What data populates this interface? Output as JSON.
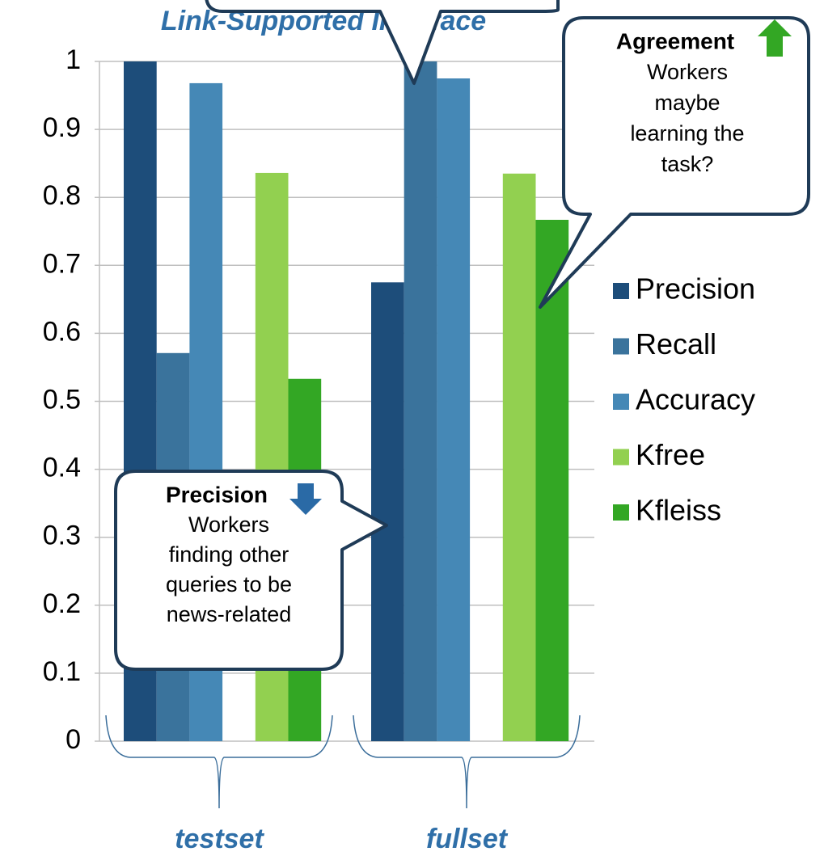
{
  "chart_data": {
    "type": "bar",
    "title": "Link-Supported Interface",
    "categories": [
      "testset",
      "fullset"
    ],
    "series": [
      {
        "name": "Precision",
        "color": "#1d4d7a",
        "values": [
          1.0,
          0.675
        ]
      },
      {
        "name": "Recall",
        "color": "#3a739c",
        "values": [
          0.571,
          1.0
        ]
      },
      {
        "name": "Accuracy",
        "color": "#4588b6",
        "values": [
          0.968,
          0.975
        ]
      },
      {
        "name": "Kfree",
        "color": "#92d050",
        "values": [
          0.836,
          0.835
        ]
      },
      {
        "name": "Kfleiss",
        "color": "#33a724",
        "values": [
          0.533,
          0.767
        ]
      }
    ],
    "ylim": [
      0,
      1
    ],
    "yticks": [
      0,
      0.1,
      0.2,
      0.3,
      0.4,
      0.5,
      0.6,
      0.7,
      0.8,
      0.9,
      1
    ],
    "grid": true,
    "legend": "right",
    "annotations": [
      {
        "title": "Agreement",
        "lines": [
          "Workers",
          "maybe",
          "learning the",
          "task?"
        ]
      },
      {
        "title": "Precision",
        "lines": [
          "Workers",
          "finding other",
          "queries to be",
          "news-related"
        ]
      }
    ]
  }
}
